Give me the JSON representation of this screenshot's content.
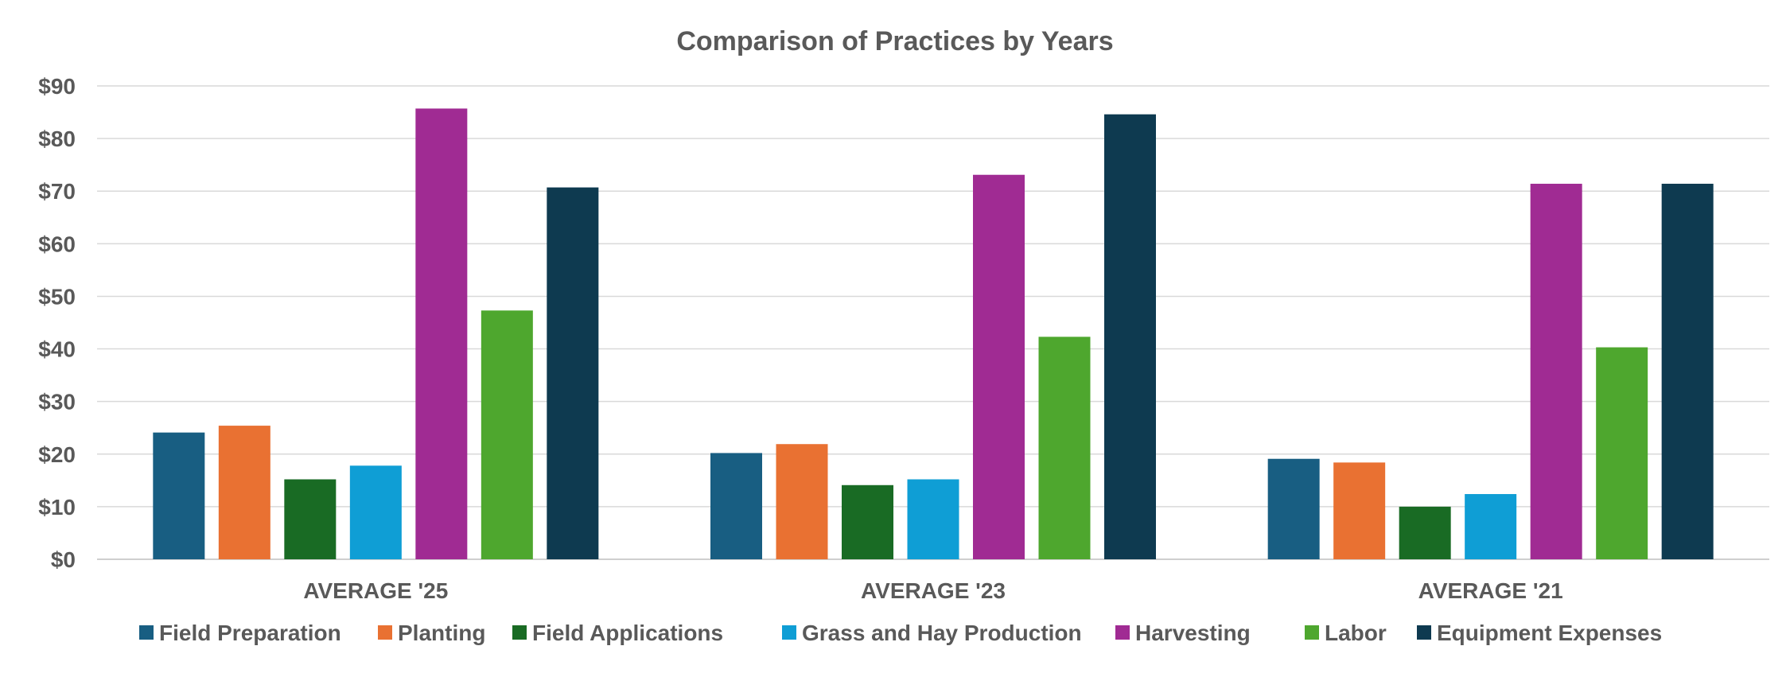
{
  "chart_data": {
    "type": "bar",
    "title": "Comparison of Practices by Years",
    "xlabel": "",
    "ylabel": "",
    "ylim": [
      0,
      90
    ],
    "yticks": [
      "$0",
      "$10",
      "$20",
      "$30",
      "$40",
      "$50",
      "$60",
      "$70",
      "$80",
      "$90"
    ],
    "grid": true,
    "legend_position": "bottom",
    "categories": [
      "AVERAGE '25",
      "AVERAGE '23",
      "AVERAGE '21"
    ],
    "series": [
      {
        "name": "Field Preparation",
        "color": "#185E82",
        "values": [
          24.1,
          20.2,
          19.1
        ]
      },
      {
        "name": "Planting",
        "color": "#E97132",
        "values": [
          25.4,
          21.9,
          18.4
        ]
      },
      {
        "name": "Field Applications",
        "color": "#196B24",
        "values": [
          15.2,
          14.1,
          10.0
        ]
      },
      {
        "name": "Grass and Hay Production",
        "color": "#0F9ED5",
        "values": [
          17.8,
          15.2,
          12.4
        ]
      },
      {
        "name": "Harvesting",
        "color": "#A02B93",
        "values": [
          85.7,
          73.1,
          71.4
        ]
      },
      {
        "name": "Labor",
        "color": "#4EA72E",
        "values": [
          47.3,
          42.3,
          40.3
        ]
      },
      {
        "name": "Equipment Expenses",
        "color": "#0E3A50",
        "values": [
          70.7,
          84.6,
          71.4
        ]
      }
    ]
  }
}
